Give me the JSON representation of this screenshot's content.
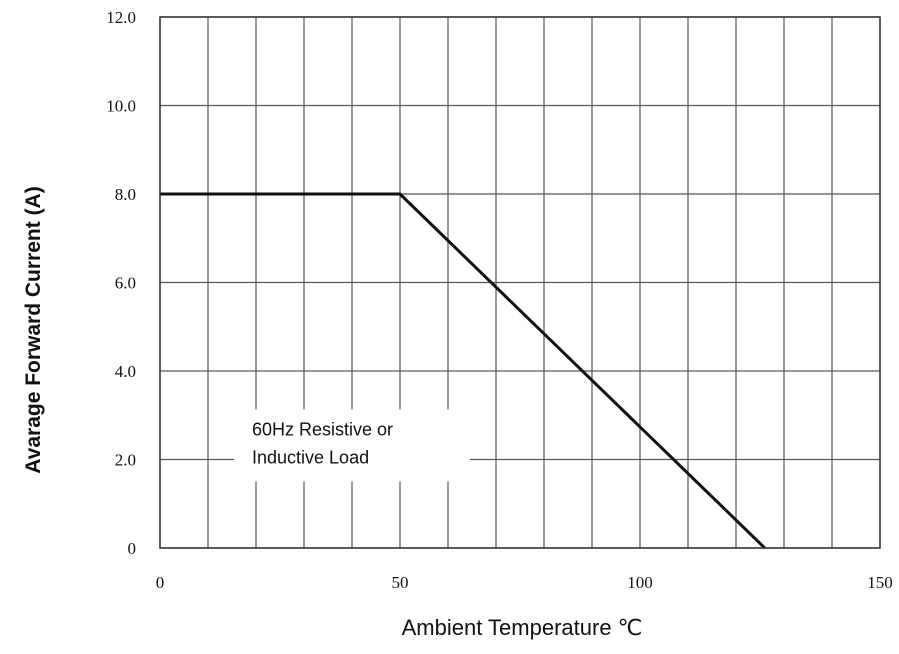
{
  "chart_data": {
    "type": "line",
    "title": "",
    "xlabel": "Ambient Temperature ℃",
    "ylabel": "Avarage Forward Current (A)",
    "xlim": [
      0,
      150
    ],
    "ylim": [
      0,
      12
    ],
    "x_tick_labels": [
      {
        "value": 0,
        "label": "0"
      },
      {
        "value": 50,
        "label": "50"
      },
      {
        "value": 100,
        "label": "100"
      },
      {
        "value": 150,
        "label": "150"
      }
    ],
    "y_tick_labels": [
      {
        "value": 0,
        "label": "0"
      },
      {
        "value": 2,
        "label": "2.0"
      },
      {
        "value": 4,
        "label": "4.0"
      },
      {
        "value": 6,
        "label": "6.0"
      },
      {
        "value": 8,
        "label": "8.0"
      },
      {
        "value": 10,
        "label": "10.0"
      },
      {
        "value": 12,
        "label": "12.0"
      }
    ],
    "x_grid_step": 10,
    "y_grid_step": 2,
    "grid": true,
    "series": [
      {
        "x": [
          0,
          50,
          126
        ],
        "y": [
          8.0,
          8.0,
          0
        ],
        "color": "#111111"
      }
    ],
    "annotation": {
      "lines": [
        "60Hz Resistive or",
        "Inductive Load"
      ],
      "x": 20,
      "y": 2.0
    }
  }
}
